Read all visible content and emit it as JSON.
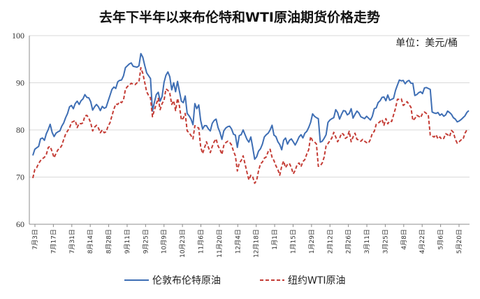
{
  "chart_data": {
    "type": "line",
    "title": "去年下半年以来布伦特和WTI原油期货价格走势",
    "unit_label": "单位：美元/桶",
    "ylim": [
      60,
      100
    ],
    "yticks": [
      60,
      70,
      80,
      90,
      100
    ],
    "grid": true,
    "legend_position": "bottom",
    "x_tick_labels": [
      "7月3日",
      "7月17日",
      "7月31日",
      "8月14日",
      "8月28日",
      "9月11日",
      "9月25日",
      "10月9日",
      "10月23日",
      "11月6日",
      "11月20日",
      "12月4日",
      "12月18日",
      "1月1日",
      "1月15日",
      "1月29日",
      "2月12日",
      "2月26日",
      "3月11日",
      "3月25日",
      "4月8日",
      "4月22日",
      "5月6日",
      "5月20日"
    ],
    "series": [
      {
        "name": "伦敦布伦特原油",
        "color": "#3e6eb4",
        "style": "solid",
        "values": [
          74.6,
          75.9,
          76.2,
          76.5,
          78.1,
          78.3,
          77.8,
          79.2,
          80.1,
          81.2,
          79.5,
          78.6,
          79.3,
          79.6,
          79.8,
          80.8,
          81.5,
          82.6,
          83.5,
          84.9,
          85.2,
          84.5,
          85.6,
          86.1,
          85.4,
          86.2,
          86.6,
          87.5,
          86.9,
          86.8,
          86.0,
          84.2,
          84.9,
          85.4,
          84.9,
          84.1,
          85.0,
          84.6,
          84.8,
          86.1,
          87.3,
          88.6,
          89.1,
          88.8,
          90.2,
          90.5,
          90.6,
          91.5,
          93.2,
          93.6,
          94.0,
          94.2,
          93.5,
          93.4,
          93.3,
          93.6,
          96.2,
          95.4,
          93.7,
          92.1,
          91.5,
          90.9,
          84.0,
          85.8,
          87.5,
          88.0,
          86.1,
          87.1,
          90.1,
          91.6,
          92.3,
          91.3,
          88.5,
          90.0,
          88.1,
          90.3,
          88.2,
          86.1,
          85.8,
          87.2,
          83.5,
          83.0,
          82.3,
          81.1,
          85.6,
          84.5,
          85.3,
          82.0,
          80.2,
          80.9,
          80.9,
          80.2,
          79.8,
          81.4,
          82.0,
          82.3,
          80.5,
          79.5,
          78.0,
          79.8,
          80.4,
          80.7,
          80.8,
          80.2,
          79.1,
          78.9,
          76.3,
          78.8,
          79.0,
          80.0,
          79.0,
          78.0,
          77.4,
          78.5,
          76.2,
          73.8,
          74.3,
          75.5,
          76.0,
          77.0,
          78.5,
          79.0,
          79.3,
          80.0,
          81.0,
          78.9,
          78.6,
          77.5,
          76.9,
          75.8,
          77.8,
          78.3,
          77.0,
          77.8,
          78.1,
          77.5,
          76.8,
          77.6,
          78.5,
          79.0,
          78.3,
          79.3,
          79.7,
          80.5,
          81.6,
          83.4,
          82.9,
          82.6,
          82.4,
          77.4,
          77.6,
          78.2,
          79.0,
          81.6,
          82.1,
          82.4,
          82.6,
          84.3,
          83.7,
          82.3,
          83.3,
          84.1,
          84.0,
          83.2,
          83.5,
          84.5,
          82.5,
          83.3,
          84.0,
          83.6,
          82.8,
          82.6,
          82.4,
          82.9,
          82.5,
          82.1,
          82.9,
          84.5,
          84.7,
          85.8,
          86.2,
          86.9,
          87.0,
          86.2,
          87.4,
          86.3,
          86.5,
          86.7,
          88.4,
          89.5,
          90.6,
          90.4,
          90.5,
          89.8,
          90.3,
          90.5,
          89.9,
          89.9,
          87.3,
          87.5,
          87.9,
          88.1,
          87.7,
          88.9,
          89.0,
          88.8,
          88.6,
          83.8,
          83.6,
          83.5,
          83.7,
          83.1,
          83.4,
          82.9,
          83.2,
          84.0,
          83.7,
          83.3,
          82.6,
          82.3,
          81.7,
          81.9,
          82.2,
          82.6,
          83.0,
          83.7,
          84.1
        ]
      },
      {
        "name": "纽约WTI原油",
        "color": "#c43c35",
        "style": "dashed",
        "values": [
          69.8,
          71.6,
          72.0,
          72.9,
          73.5,
          73.9,
          74.2,
          74.8,
          76.3,
          76.5,
          75.4,
          74.1,
          75.0,
          75.8,
          76.1,
          76.7,
          78.0,
          79.1,
          79.8,
          80.4,
          81.6,
          81.8,
          82.0,
          80.5,
          81.4,
          81.3,
          81.5,
          83.0,
          83.1,
          82.5,
          81.5,
          79.8,
          80.6,
          81.0,
          80.4,
          79.4,
          80.0,
          79.4,
          79.6,
          80.8,
          81.5,
          83.0,
          84.4,
          85.5,
          85.4,
          86.0,
          85.8,
          86.4,
          88.6,
          89.2,
          89.5,
          89.9,
          89.7,
          89.6,
          90.0,
          90.2,
          93.2,
          92.0,
          90.1,
          88.1,
          87.3,
          86.8,
          82.8,
          84.2,
          85.5,
          86.7,
          84.3,
          85.6,
          86.3,
          88.7,
          88.4,
          87.8,
          85.4,
          86.2,
          84.1,
          86.7,
          85.1,
          82.1,
          82.5,
          83.5,
          79.8,
          79.4,
          78.8,
          78.1,
          80.9,
          80.6,
          80.4,
          76.4,
          75.0,
          76.2,
          77.5,
          76.3,
          75.2,
          76.5,
          77.5,
          78.1,
          76.6,
          75.9,
          74.8,
          76.7,
          77.3,
          77.6,
          77.4,
          76.8,
          75.5,
          74.5,
          71.3,
          73.0,
          73.5,
          74.5,
          72.8,
          71.0,
          69.4,
          70.4,
          70.0,
          68.7,
          69.3,
          71.3,
          72.8,
          73.2,
          74.0,
          74.3,
          75.4,
          75.9,
          74.2,
          73.5,
          72.4,
          71.6,
          70.4,
          72.3,
          73.4,
          72.0,
          72.7,
          72.9,
          72.0,
          70.7,
          71.4,
          72.7,
          73.0,
          72.2,
          73.3,
          73.7,
          74.9,
          75.8,
          78.6,
          77.7,
          77.5,
          77.0,
          72.3,
          72.4,
          73.0,
          74.2,
          76.6,
          77.1,
          77.7,
          78.3,
          79.5,
          78.5,
          77.5,
          78.2,
          79.3,
          79.1,
          78.2,
          78.5,
          79.7,
          77.5,
          78.5,
          79.3,
          78.0,
          77.9,
          77.6,
          78.0,
          77.6,
          77.3,
          77.2,
          78.0,
          79.3,
          79.7,
          81.2,
          81.4,
          81.8,
          82.2,
          81.0,
          82.4,
          81.3,
          81.9,
          81.8,
          83.2,
          84.6,
          86.5,
          86.5,
          86.6,
          85.2,
          85.5,
          86.0,
          85.4,
          84.8,
          82.0,
          82.4,
          83.1,
          82.9,
          82.6,
          83.5,
          83.8,
          83.5,
          83.2,
          78.9,
          78.7,
          78.5,
          79.0,
          78.1,
          78.5,
          78.0,
          78.2,
          79.2,
          79.0,
          78.6,
          79.9,
          79.5,
          78.0,
          77.2,
          77.5,
          77.9,
          78.0,
          79.3,
          80.0
        ]
      }
    ]
  }
}
